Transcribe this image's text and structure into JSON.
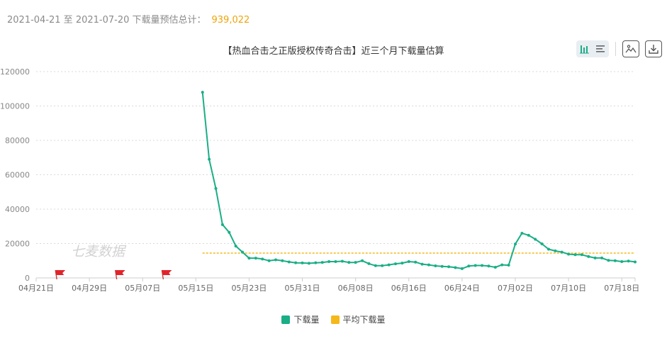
{
  "summary": {
    "date_range": "2021-04-21 至 2021-07-20 下载量预估总计：",
    "total": "939,022"
  },
  "chart_data": {
    "type": "line",
    "title": "【热血合击之正版授权传奇合击】近三个月下载量估算",
    "watermark": "七麦数据",
    "x_tick_labels": [
      "04月21日",
      "04月29日",
      "05月07日",
      "05月15日",
      "05月23日",
      "05月31日",
      "06月08日",
      "06月16日",
      "06月24日",
      "07月02日",
      "07月10日",
      "07月18日"
    ],
    "y_tick_labels": [
      "0",
      "20000",
      "40000",
      "60000",
      "80000",
      "100000",
      "120000"
    ],
    "ylim": [
      0,
      120000
    ],
    "start_date": "2021-04-21",
    "dates_count": 91,
    "grid": true,
    "legend_position": "bottom",
    "flags_dates": [
      "2021-04-24",
      "2021-05-03",
      "2021-05-10"
    ],
    "series": [
      {
        "name": "下载量",
        "color": "#1aae86",
        "start_date": "2021-05-16",
        "values": [
          108000,
          69000,
          52000,
          31000,
          26500,
          18500,
          15000,
          11500,
          11500,
          11000,
          10000,
          10500,
          10000,
          9300,
          8800,
          8700,
          8500,
          8800,
          9000,
          9500,
          9500,
          9700,
          9000,
          9000,
          10000,
          8300,
          7100,
          7100,
          7600,
          8200,
          8600,
          9500,
          9200,
          8000,
          7600,
          7000,
          6700,
          6500,
          6000,
          5400,
          6900,
          7200,
          7200,
          6900,
          6200,
          7600,
          7400,
          19700,
          26000,
          24800,
          22500,
          19800,
          16700,
          15700,
          15000,
          13800,
          13500,
          13500,
          12400,
          11600,
          11600,
          10200,
          10000,
          9500,
          9800,
          9300
        ]
      },
      {
        "name": "平均下载量",
        "color": "#f5b81c",
        "dashed": true,
        "start_date": "2021-05-16",
        "end_date": "2021-07-20",
        "values": [
          14446
        ]
      }
    ]
  },
  "toolbar": {
    "icons": [
      "bar-chart-icon",
      "list-icon",
      "image-icon",
      "download-icon"
    ]
  }
}
